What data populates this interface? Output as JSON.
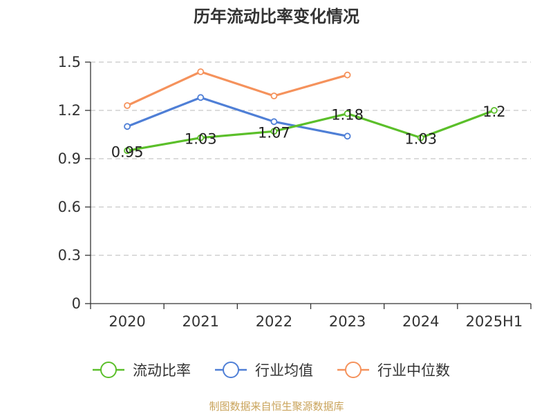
{
  "chart_data": {
    "type": "line",
    "title": "历年流动比率变化情况",
    "categories": [
      "2020",
      "2021",
      "2022",
      "2023",
      "2024",
      "2025H1"
    ],
    "ylim": [
      0,
      1.5
    ],
    "yticks": [
      "0",
      "0.3",
      "0.6",
      "0.9",
      "1.2",
      "1.5"
    ],
    "grid": true,
    "legend_position": "bottom",
    "series": [
      {
        "name": "流动比率",
        "color": "#5bbf2a",
        "values": [
          0.95,
          1.03,
          1.07,
          1.18,
          1.03,
          1.2
        ],
        "labels": [
          "0.95",
          "1.03",
          "1.07",
          "1.18",
          "1.03",
          "1.2"
        ]
      },
      {
        "name": "行业均值",
        "color": "#4f7fd6",
        "values": [
          1.1,
          1.28,
          1.13,
          1.04,
          null,
          null
        ]
      },
      {
        "name": "行业中位数",
        "color": "#f5925c",
        "values": [
          1.23,
          1.44,
          1.29,
          1.42,
          null,
          null
        ]
      }
    ]
  },
  "source": "制图数据来自恒生聚源数据库"
}
